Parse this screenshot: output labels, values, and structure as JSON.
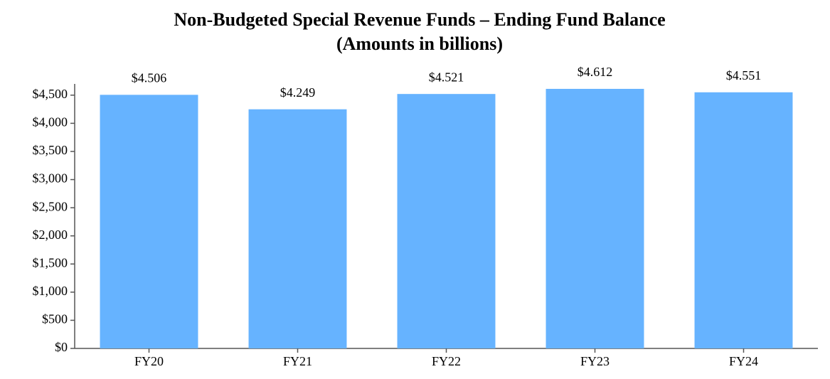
{
  "chart_data": {
    "type": "bar",
    "title": "Non-Budgeted Special Revenue Funds – Ending  Fund Balance",
    "subtitle": "(Amounts in billions)",
    "categories": [
      "FY20",
      "FY21",
      "FY22",
      "FY23",
      "FY24"
    ],
    "values": [
      4506,
      4249,
      4521,
      4612,
      4551
    ],
    "value_labels": [
      "$4.506",
      "$4.249",
      "$4.521",
      "$4.612",
      "$4.551"
    ],
    "color": "#66b3ff",
    "ylim": [
      0,
      4700
    ],
    "yticks": [
      {
        "value": 0,
        "label": "$0"
      },
      {
        "value": 500,
        "label": "$500"
      },
      {
        "value": 1000,
        "label": "$1,000"
      },
      {
        "value": 1500,
        "label": "$1,500"
      },
      {
        "value": 2000,
        "label": "$2,000"
      },
      {
        "value": 2500,
        "label": "$2,500"
      },
      {
        "value": 3000,
        "label": "$3,000"
      },
      {
        "value": 3500,
        "label": "$3,500"
      },
      {
        "value": 4000,
        "label": "$4,000"
      },
      {
        "value": 4500,
        "label": "$4,500"
      }
    ],
    "grid": false
  }
}
